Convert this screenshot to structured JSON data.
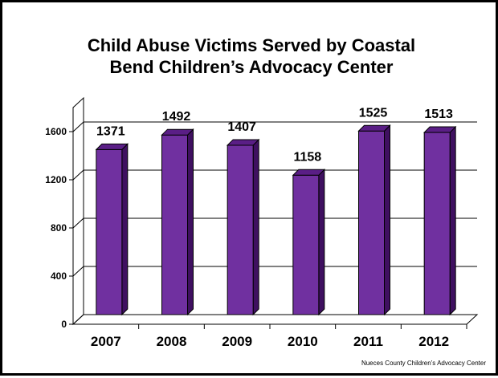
{
  "chart_data": {
    "type": "bar",
    "title_lines": [
      "Child Abuse Victims Served by Coastal",
      "Bend Children’s Advocacy Center"
    ],
    "categories": [
      "2007",
      "2008",
      "2009",
      "2010",
      "2011",
      "2012"
    ],
    "values": [
      1371,
      1492,
      1407,
      1158,
      1525,
      1513
    ],
    "data_labels": [
      "1371",
      "1492",
      "1407",
      "1158",
      "1525",
      "1513"
    ],
    "yticks": [
      "0",
      "400",
      "800",
      "1200",
      "1600"
    ],
    "ylim": [
      0,
      1600
    ],
    "xlabel": "",
    "ylabel": "",
    "grid": true,
    "bar_color": "#7030A0",
    "bar_top_color": "#5A1E86",
    "bar_side_color": "#3F1060"
  },
  "source_note": "Nueces County Children’s Advocacy Center"
}
